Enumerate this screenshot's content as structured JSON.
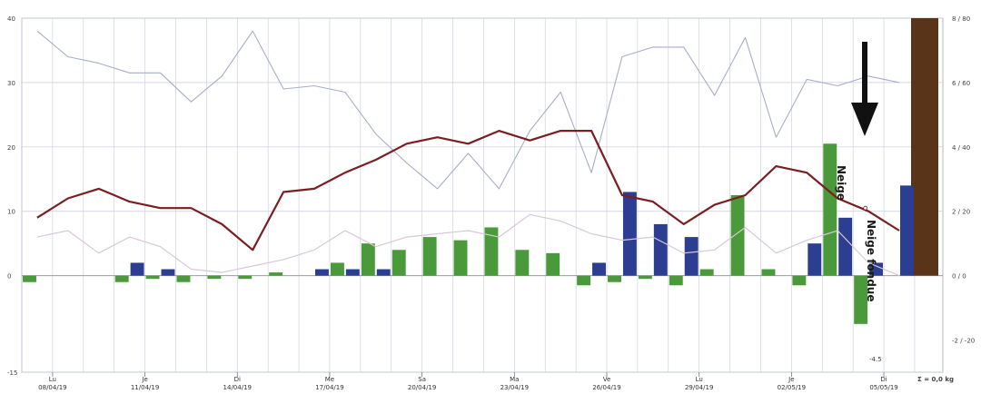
{
  "chart_data": {
    "type": "bar",
    "left_axis": {
      "min": -15,
      "max": 40,
      "ticks": [
        "-15",
        "0",
        "10",
        "20",
        "30",
        "40"
      ]
    },
    "right_axis": {
      "ticks": [
        "-2 / -20",
        "0 / 0",
        "2 / 20",
        "4 / 40",
        "6 / 60",
        "8 / 80"
      ]
    },
    "x_labels": [
      {
        "day": "Lu",
        "date": "08/04/19",
        "index": 1
      },
      {
        "day": "Je",
        "date": "11/04/19",
        "index": 4
      },
      {
        "day": "Di",
        "date": "14/04/19",
        "index": 7
      },
      {
        "day": "Me",
        "date": "17/04/19",
        "index": 10
      },
      {
        "day": "Sa",
        "date": "20/04/19",
        "index": 13
      },
      {
        "day": "Ma",
        "date": "23/04/19",
        "index": 16
      },
      {
        "day": "Ve",
        "date": "26/04/19",
        "index": 19
      },
      {
        "day": "Lu",
        "date": "29/04/19",
        "index": 22
      },
      {
        "day": "Je",
        "date": "02/05/19",
        "index": 25
      },
      {
        "day": "Di",
        "date": "05/05/19",
        "index": 28
      }
    ],
    "days_count": 29,
    "series": [
      {
        "kind": "bar",
        "color": "#2c3e91",
        "values": [
          0,
          0,
          0,
          2,
          1,
          0,
          0,
          0,
          0,
          1,
          1,
          1,
          0,
          0,
          0,
          0,
          0,
          0,
          2,
          13,
          8,
          6,
          0,
          0,
          0,
          5,
          9,
          2,
          14
        ]
      },
      {
        "kind": "bar",
        "color": "#4a9a3c",
        "values": [
          -1,
          0,
          0,
          -1,
          -0.5,
          -1,
          -0.5,
          -0.5,
          0.5,
          0,
          2,
          5,
          4,
          6,
          5.5,
          7.5,
          4,
          3.5,
          -1.5,
          -1,
          -0.5,
          -1.5,
          1,
          12.5,
          1,
          -1.5,
          20.5,
          -7.5,
          0
        ]
      },
      {
        "kind": "line",
        "color": "#7a1e22",
        "values": [
          9,
          12,
          13.5,
          11.5,
          10.5,
          10.5,
          8,
          4,
          13,
          13.5,
          16,
          18,
          20.5,
          21.5,
          20.5,
          22.5,
          21,
          22.5,
          22.5,
          12.5,
          11.5,
          8,
          11,
          12.5,
          17,
          16,
          12,
          10,
          7
        ]
      },
      {
        "kind": "line",
        "color": "#a8aec8",
        "values": [
          38,
          34,
          33,
          31.5,
          31.5,
          27,
          31,
          38,
          29,
          29.5,
          28.5,
          22,
          17.5,
          13.5,
          19,
          13.5,
          22.5,
          28.5,
          16,
          34,
          35.5,
          35.5,
          28,
          37,
          21.5,
          30.5,
          29.5,
          31,
          30
        ]
      },
      {
        "kind": "line",
        "color": "#d8c8d8",
        "values": [
          6,
          7,
          3.5,
          6,
          4.5,
          1,
          0.5,
          1.5,
          2.5,
          4,
          7,
          4.5,
          6,
          6.5,
          7,
          6,
          9.5,
          8.5,
          6.5,
          5.5,
          6,
          3.5,
          4,
          7.5,
          3.5,
          5.5,
          7,
          2,
          0
        ]
      }
    ],
    "total_bar": {
      "color": "#5a3418",
      "value": 40
    },
    "annotations": {
      "label_green": "Neige",
      "label_blue": "Neige fondue",
      "value_label": "-4.5",
      "total_label": "Σ = 0,0 kg"
    }
  }
}
